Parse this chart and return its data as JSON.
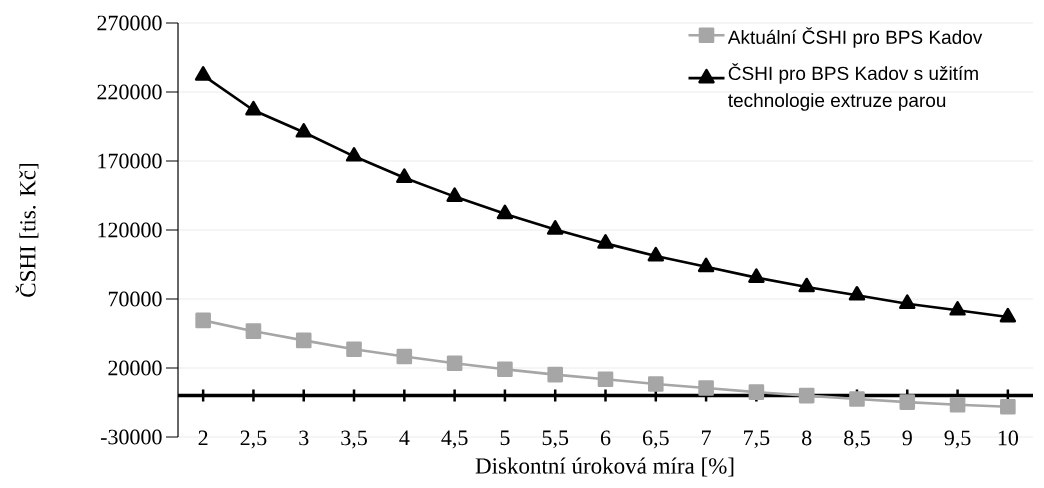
{
  "chart_data": {
    "type": "line",
    "xlabel": "Diskontní úroková míra [%]",
    "ylabel": "ČSHI [tis. Kč]",
    "categories": [
      "2",
      "2,5",
      "3",
      "3,5",
      "4",
      "4,5",
      "5",
      "5,5",
      "6",
      "6,5",
      "7",
      "7,5",
      "8",
      "8,5",
      "9",
      "9,5",
      "10"
    ],
    "series": [
      {
        "name": "Aktuální ČSHI pro BPS Kadov",
        "color": "#a6a6a6",
        "marker": "square",
        "values": [
          54500,
          46700,
          40000,
          33600,
          28300,
          23400,
          19100,
          15200,
          11800,
          8400,
          5500,
          2500,
          0,
          -2500,
          -4700,
          -6600,
          -8100
        ]
      },
      {
        "name": "ČSHI pro BPS Kadov s užitím technologie extruze parou",
        "color": "#000000",
        "marker": "triangle",
        "values": [
          232000,
          206800,
          190800,
          173400,
          157900,
          144200,
          131700,
          120400,
          110300,
          101100,
          93300,
          85500,
          78700,
          72700,
          66600,
          61800,
          56900
        ]
      }
    ],
    "ylim": [
      -30000,
      270000
    ],
    "yticks": [
      -30000,
      20000,
      70000,
      120000,
      170000,
      220000,
      270000
    ],
    "grid": "y",
    "legend": "top right"
  }
}
